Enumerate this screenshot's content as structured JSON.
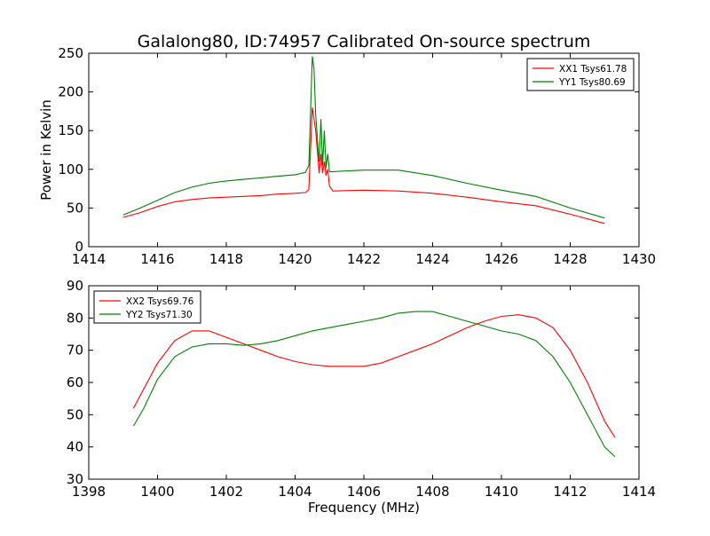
{
  "title": "Galalong80, ID:74957 Calibrated On-source spectrum",
  "chart_data": [
    {
      "type": "line",
      "ylabel": "Power in Kelvin",
      "xlabel": "",
      "xlim": [
        1414,
        1430
      ],
      "ylim": [
        0,
        250
      ],
      "xticks": [
        "1414",
        "1416",
        "1418",
        "1420",
        "1422",
        "1424",
        "1426",
        "1428",
        "1430"
      ],
      "yticks": [
        "0",
        "50",
        "100",
        "150",
        "200",
        "250"
      ],
      "legend_position": "top-right",
      "series": [
        {
          "name": "XX1 Tsys61.78",
          "color": "#ff0000",
          "points": [
            [
              1415.0,
              38
            ],
            [
              1415.5,
              44
            ],
            [
              1416.0,
              52
            ],
            [
              1416.5,
              58
            ],
            [
              1417.0,
              61
            ],
            [
              1417.5,
              63
            ],
            [
              1418.0,
              64
            ],
            [
              1418.5,
              65
            ],
            [
              1419.0,
              66
            ],
            [
              1419.5,
              68
            ],
            [
              1420.0,
              69
            ],
            [
              1420.3,
              70
            ],
            [
              1420.4,
              74
            ],
            [
              1420.5,
              180
            ],
            [
              1420.6,
              150
            ],
            [
              1420.7,
              95
            ],
            [
              1420.75,
              120
            ],
            [
              1420.8,
              95
            ],
            [
              1420.85,
              110
            ],
            [
              1420.9,
              92
            ],
            [
              1420.95,
              100
            ],
            [
              1421.0,
              78
            ],
            [
              1421.1,
              72
            ],
            [
              1422.0,
              73
            ],
            [
              1423.0,
              72
            ],
            [
              1424.0,
              69
            ],
            [
              1425.0,
              64
            ],
            [
              1426.0,
              58
            ],
            [
              1427.0,
              53
            ],
            [
              1428.0,
              42
            ],
            [
              1429.0,
              30
            ]
          ]
        },
        {
          "name": "YY1 Tsys80.69",
          "color": "#008000",
          "points": [
            [
              1415.0,
              41
            ],
            [
              1415.5,
              50
            ],
            [
              1416.0,
              60
            ],
            [
              1416.5,
              70
            ],
            [
              1417.0,
              77
            ],
            [
              1417.5,
              82
            ],
            [
              1418.0,
              85
            ],
            [
              1418.5,
              87
            ],
            [
              1419.0,
              89
            ],
            [
              1419.5,
              91
            ],
            [
              1420.0,
              93
            ],
            [
              1420.3,
              96
            ],
            [
              1420.4,
              105
            ],
            [
              1420.5,
              246
            ],
            [
              1420.55,
              230
            ],
            [
              1420.6,
              170
            ],
            [
              1420.7,
              110
            ],
            [
              1420.75,
              165
            ],
            [
              1420.8,
              105
            ],
            [
              1420.85,
              150
            ],
            [
              1420.9,
              102
            ],
            [
              1420.95,
              120
            ],
            [
              1421.0,
              97
            ],
            [
              1421.1,
              97
            ],
            [
              1422.0,
              99
            ],
            [
              1423.0,
              99
            ],
            [
              1424.0,
              92
            ],
            [
              1425.0,
              82
            ],
            [
              1426.0,
              73
            ],
            [
              1427.0,
              65
            ],
            [
              1428.0,
              50
            ],
            [
              1429.0,
              37
            ]
          ]
        }
      ]
    },
    {
      "type": "line",
      "xlabel": "Frequency (MHz)",
      "ylabel": "",
      "xlim": [
        1398,
        1414
      ],
      "ylim": [
        30,
        90
      ],
      "xticks": [
        "1398",
        "1400",
        "1402",
        "1404",
        "1406",
        "1408",
        "1410",
        "1412",
        "1414"
      ],
      "yticks": [
        "30",
        "40",
        "50",
        "60",
        "70",
        "80",
        "90"
      ],
      "legend_position": "top-left",
      "series": [
        {
          "name": "XX2 Tsys69.76",
          "color": "#ff0000",
          "points": [
            [
              1399.3,
              52
            ],
            [
              1399.6,
              58
            ],
            [
              1400.0,
              66
            ],
            [
              1400.5,
              73
            ],
            [
              1401.0,
              76
            ],
            [
              1401.5,
              76
            ],
            [
              1402.0,
              74
            ],
            [
              1402.5,
              72
            ],
            [
              1403.0,
              70
            ],
            [
              1403.5,
              68
            ],
            [
              1404.0,
              66.5
            ],
            [
              1404.5,
              65.5
            ],
            [
              1405.0,
              65
            ],
            [
              1405.5,
              65
            ],
            [
              1406.0,
              65
            ],
            [
              1406.5,
              66
            ],
            [
              1407.0,
              68
            ],
            [
              1407.5,
              70
            ],
            [
              1408.0,
              72
            ],
            [
              1408.5,
              74.5
            ],
            [
              1409.0,
              77
            ],
            [
              1409.5,
              79
            ],
            [
              1410.0,
              80.5
            ],
            [
              1410.5,
              81
            ],
            [
              1411.0,
              80
            ],
            [
              1411.5,
              77
            ],
            [
              1412.0,
              70
            ],
            [
              1412.5,
              60
            ],
            [
              1413.0,
              48
            ],
            [
              1413.3,
              43
            ]
          ]
        },
        {
          "name": "YY2 Tsys71.30",
          "color": "#008000",
          "points": [
            [
              1399.3,
              46.5
            ],
            [
              1399.6,
              52
            ],
            [
              1400.0,
              61
            ],
            [
              1400.5,
              68
            ],
            [
              1401.0,
              71
            ],
            [
              1401.5,
              72
            ],
            [
              1402.0,
              72
            ],
            [
              1402.5,
              71.5
            ],
            [
              1403.0,
              72
            ],
            [
              1403.5,
              73
            ],
            [
              1404.0,
              74.5
            ],
            [
              1404.5,
              76
            ],
            [
              1405.0,
              77
            ],
            [
              1405.5,
              78
            ],
            [
              1406.0,
              79
            ],
            [
              1406.5,
              80
            ],
            [
              1407.0,
              81.5
            ],
            [
              1407.5,
              82
            ],
            [
              1408.0,
              82
            ],
            [
              1408.5,
              80.5
            ],
            [
              1409.0,
              79
            ],
            [
              1409.5,
              77.5
            ],
            [
              1410.0,
              76
            ],
            [
              1410.5,
              75
            ],
            [
              1411.0,
              73
            ],
            [
              1411.5,
              68
            ],
            [
              1412.0,
              60
            ],
            [
              1412.5,
              50
            ],
            [
              1413.0,
              40
            ],
            [
              1413.3,
              37
            ]
          ]
        }
      ]
    }
  ]
}
